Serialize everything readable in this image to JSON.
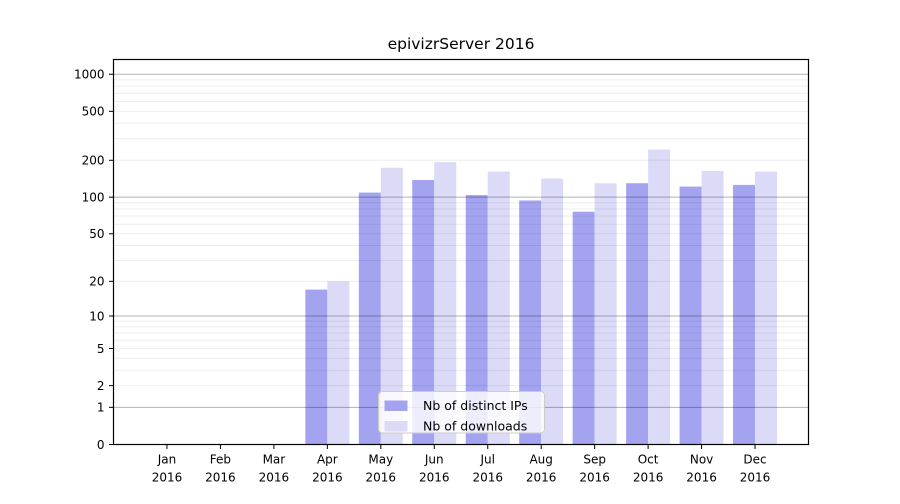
{
  "title": "epivizrServer 2016",
  "colors": {
    "bar_dark": "#a3a3f0",
    "bar_light": "#dbdbf7",
    "axis": "#000000",
    "grid_major": "rgba(0,0,0,0.30)",
    "grid_minor": "rgba(0,0,0,0.07)",
    "legend_border": "#cccccc",
    "legend_fill": "rgba(255,255,255,0.8)"
  },
  "legend": {
    "items": [
      {
        "label": "Nb of distinct IPs",
        "color_key": "bar_dark"
      },
      {
        "label": "Nb of downloads",
        "color_key": "bar_light"
      }
    ]
  },
  "y_axis": {
    "scale": "log1p",
    "ticks": [
      0,
      1,
      2,
      5,
      10,
      20,
      50,
      100,
      200,
      500,
      1000
    ],
    "minor_gridlines": [
      2,
      3,
      4,
      5,
      6,
      7,
      8,
      9,
      20,
      30,
      40,
      50,
      60,
      70,
      80,
      90,
      200,
      300,
      400,
      500,
      600,
      700,
      800,
      900
    ],
    "major_gridlines": [
      1,
      10,
      100,
      1000
    ]
  },
  "x_axis": {
    "ticks": [
      {
        "month": "Jan",
        "year": "2016"
      },
      {
        "month": "Feb",
        "year": "2016"
      },
      {
        "month": "Mar",
        "year": "2016"
      },
      {
        "month": "Apr",
        "year": "2016"
      },
      {
        "month": "May",
        "year": "2016"
      },
      {
        "month": "Jun",
        "year": "2016"
      },
      {
        "month": "Jul",
        "year": "2016"
      },
      {
        "month": "Aug",
        "year": "2016"
      },
      {
        "month": "Sep",
        "year": "2016"
      },
      {
        "month": "Oct",
        "year": "2016"
      },
      {
        "month": "Nov",
        "year": "2016"
      },
      {
        "month": "Dec",
        "year": "2016"
      }
    ]
  },
  "chart_data": {
    "type": "bar",
    "title": "epivizrServer 2016",
    "xlabel": "",
    "ylabel": "",
    "yscale": "log1p",
    "ylim": [
      0,
      1310
    ],
    "grid": "both",
    "legend_position": "inside lower center",
    "categories": [
      "Jan 2016",
      "Feb 2016",
      "Mar 2016",
      "Apr 2016",
      "May 2016",
      "Jun 2016",
      "Jul 2016",
      "Aug 2016",
      "Sep 2016",
      "Oct 2016",
      "Nov 2016",
      "Dec 2016"
    ],
    "series": [
      {
        "name": "Nb of distinct IPs",
        "values": [
          0,
          0,
          0,
          17,
          109,
          138,
          104,
          94,
          76,
          130,
          122,
          126
        ]
      },
      {
        "name": "Nb of downloads",
        "values": [
          0,
          0,
          0,
          20,
          174,
          193,
          162,
          142,
          130,
          245,
          164,
          162
        ]
      }
    ]
  }
}
